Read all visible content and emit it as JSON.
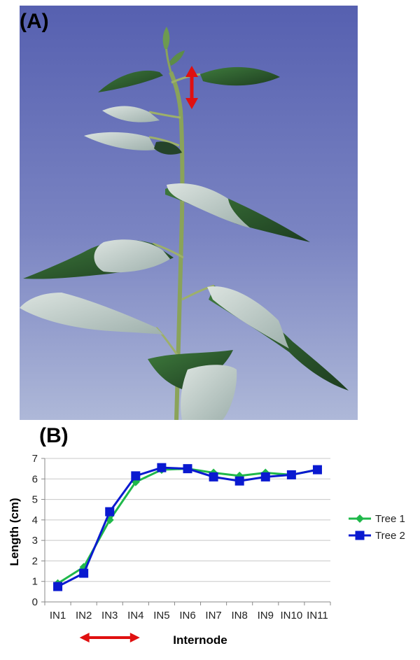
{
  "panel_a": {
    "label": "(A)"
  },
  "panel_b": {
    "label": "(B)"
  },
  "colors": {
    "sky_top": "#5660b0",
    "sky_bottom": "#aab4d6",
    "leaf_dark": "#244a26",
    "leaf_light": "#c7d3cf",
    "stem": "#8aa35a",
    "arrow": "#e01010",
    "tree1": "#1fb84a",
    "tree2": "#0a1ad0"
  },
  "chart_data": {
    "type": "line",
    "categories": [
      "IN1",
      "IN2",
      "IN3",
      "IN4",
      "IN5",
      "IN6",
      "IN7",
      "IN8",
      "IN9",
      "IN10",
      "IN11"
    ],
    "series": [
      {
        "name": "Tree 1",
        "marker": "diamond",
        "color": "#1fb84a",
        "values": [
          0.9,
          1.7,
          4.0,
          5.85,
          6.45,
          6.5,
          6.3,
          6.15,
          6.3,
          6.2,
          6.45
        ]
      },
      {
        "name": "Tree 2",
        "marker": "square",
        "color": "#0a1ad0",
        "values": [
          0.75,
          1.4,
          4.4,
          6.15,
          6.55,
          6.5,
          6.1,
          5.9,
          6.1,
          6.2,
          6.45
        ]
      }
    ],
    "xlabel": "Internode",
    "ylabel": "Length (cm)",
    "ylim": [
      0,
      7
    ],
    "yticks": [
      "0",
      "1",
      "2",
      "3",
      "4",
      "5",
      "6",
      "7"
    ],
    "grid": true,
    "legend": "right",
    "highlight_range": [
      "IN2",
      "IN4"
    ]
  }
}
